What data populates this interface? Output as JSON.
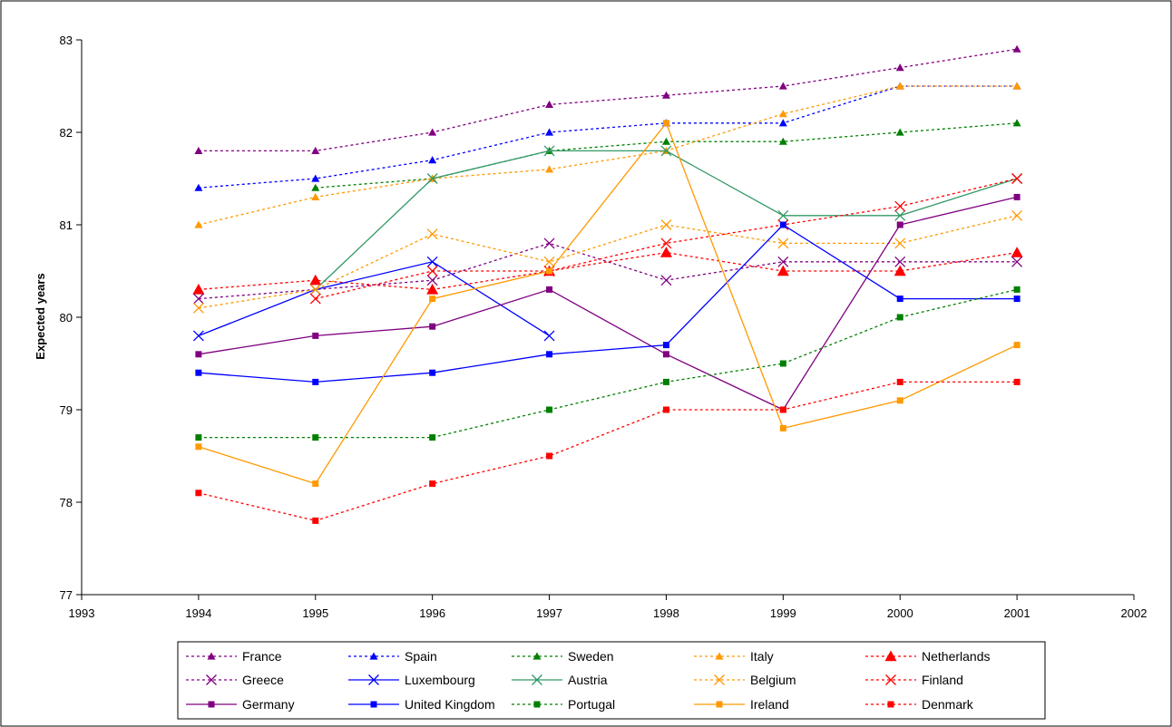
{
  "chart_data": {
    "type": "line",
    "title": "",
    "xlabel": "",
    "ylabel": "Expected years",
    "xlim": [
      1993,
      2002
    ],
    "ylim": [
      77,
      83
    ],
    "xticks": [
      "1993",
      "1994",
      "1995",
      "1996",
      "1997",
      "1998",
      "1999",
      "2000",
      "2001",
      "2002"
    ],
    "yticks": [
      "77",
      "78",
      "79",
      "80",
      "81",
      "82",
      "83"
    ],
    "x": [
      1994,
      1995,
      1996,
      1997,
      1998,
      1999,
      2000,
      2001
    ],
    "grid": false,
    "legend": "bottom",
    "series": [
      {
        "name": "France",
        "color": "#800080",
        "dash": "dotted",
        "marker": "triangle",
        "values": [
          81.8,
          81.8,
          82.0,
          82.3,
          82.4,
          82.5,
          82.7,
          82.9
        ]
      },
      {
        "name": "Spain",
        "color": "#0000ff",
        "dash": "dotted",
        "marker": "triangle",
        "values": [
          81.4,
          81.5,
          81.7,
          82.0,
          82.1,
          82.1,
          82.5,
          82.5
        ]
      },
      {
        "name": "Sweden",
        "color": "#008000",
        "dash": "dotted",
        "marker": "triangle",
        "values": [
          null,
          81.4,
          81.5,
          81.8,
          81.9,
          81.9,
          82.0,
          82.1
        ]
      },
      {
        "name": "Italy",
        "color": "#ff9900",
        "dash": "dotted",
        "marker": "triangle",
        "values": [
          81.0,
          81.3,
          81.5,
          81.6,
          81.8,
          82.2,
          82.5,
          82.5
        ]
      },
      {
        "name": "Netherlands",
        "color": "#ff0000",
        "dash": "dotted",
        "marker": "triangle-lg",
        "values": [
          80.3,
          80.4,
          80.3,
          80.5,
          80.7,
          80.5,
          80.5,
          80.7
        ]
      },
      {
        "name": "Greece",
        "color": "#800080",
        "dash": "dotted",
        "marker": "x",
        "values": [
          80.2,
          80.3,
          80.4,
          80.8,
          80.4,
          80.6,
          80.6,
          80.6
        ]
      },
      {
        "name": "Luxembourg",
        "color": "#0000ff",
        "dash": "solid",
        "marker": "x",
        "values": [
          79.8,
          80.3,
          80.6,
          79.8,
          null,
          null,
          null,
          null
        ]
      },
      {
        "name": "Austria",
        "color": "#339966",
        "dash": "solid",
        "marker": "x",
        "values": [
          null,
          80.3,
          81.5,
          81.8,
          81.8,
          81.1,
          81.1,
          81.5
        ]
      },
      {
        "name": "Belgium",
        "color": "#ff9900",
        "dash": "dotted",
        "marker": "x",
        "values": [
          80.1,
          80.3,
          80.9,
          80.6,
          81.0,
          80.8,
          80.8,
          81.1
        ]
      },
      {
        "name": "Finland",
        "color": "#ff0000",
        "dash": "dotted",
        "marker": "x",
        "values": [
          null,
          80.2,
          80.5,
          80.5,
          80.8,
          81.0,
          81.2,
          81.5
        ]
      },
      {
        "name": "Germany",
        "color": "#800080",
        "dash": "solid",
        "marker": "square",
        "values": [
          79.6,
          79.8,
          79.9,
          80.3,
          79.6,
          79.0,
          81.0,
          81.3
        ]
      },
      {
        "name": "United Kingdom",
        "color": "#0000ff",
        "dash": "solid",
        "marker": "square",
        "values": [
          79.4,
          79.3,
          79.4,
          79.6,
          79.7,
          81.0,
          80.2,
          80.2
        ]
      },
      {
        "name": "Portugal",
        "color": "#008000",
        "dash": "dotted",
        "marker": "square",
        "values": [
          78.7,
          78.7,
          78.7,
          79.0,
          79.3,
          79.5,
          80.0,
          80.3
        ]
      },
      {
        "name": "Ireland",
        "color": "#ff9900",
        "dash": "solid",
        "marker": "square",
        "values": [
          78.6,
          78.2,
          80.2,
          80.5,
          82.1,
          78.8,
          79.1,
          79.7
        ]
      },
      {
        "name": "Denmark",
        "color": "#ff0000",
        "dash": "dotted",
        "marker": "square",
        "values": [
          78.1,
          77.8,
          78.2,
          78.5,
          79.0,
          79.0,
          79.3,
          79.3
        ]
      }
    ]
  }
}
